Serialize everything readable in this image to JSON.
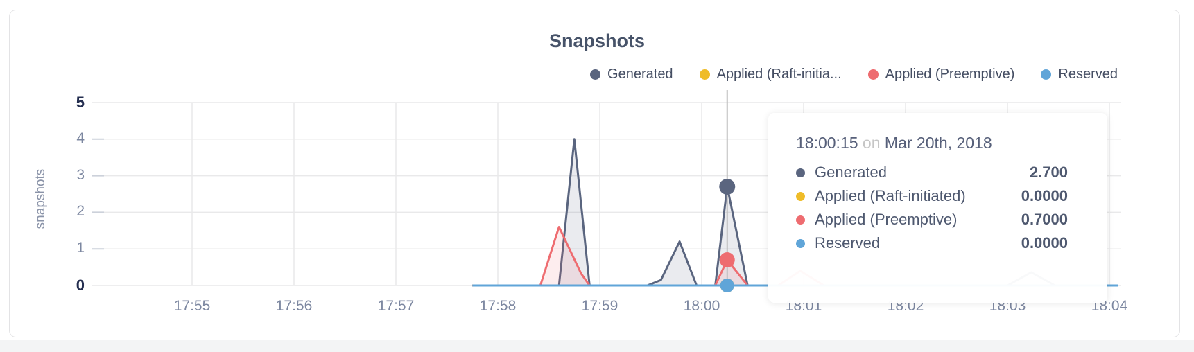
{
  "chart_data": {
    "type": "area",
    "title": "Snapshots",
    "ylabel": "snapshots",
    "xlabel": "",
    "grid": true,
    "legend_position": "top-right",
    "ylim": [
      0,
      5
    ],
    "y_ticks": [
      "0",
      "1",
      "2",
      "3",
      "4",
      "5"
    ],
    "x_ticks": [
      "17:55",
      "17:56",
      "17:57",
      "17:58",
      "17:59",
      "18:00",
      "18:01",
      "18:02",
      "18:03",
      "18:04"
    ],
    "legend": [
      {
        "label": "Generated",
        "color": "#5A657F"
      },
      {
        "label": "Applied (Raft-initia...",
        "color": "#EFBC28"
      },
      {
        "label": "Applied (Preemptive)",
        "color": "#EE6C70"
      },
      {
        "label": "Reserved",
        "color": "#60A5D8"
      }
    ],
    "series": [
      {
        "name": "Generated",
        "color": "#5A657F",
        "fill": "rgba(92,103,128,0.13)",
        "points": [
          [
            "17:57:45",
            0
          ],
          [
            "17:58:36",
            0
          ],
          [
            "17:58:45",
            4.0
          ],
          [
            "17:58:54",
            0
          ],
          [
            "17:59:28",
            0
          ],
          [
            "17:59:36",
            0.15
          ],
          [
            "17:59:47",
            1.2
          ],
          [
            "17:59:57",
            0
          ],
          [
            "18:00:08",
            0
          ],
          [
            "18:00:15",
            2.7
          ],
          [
            "18:00:27",
            0
          ],
          [
            "18:03:00",
            0
          ],
          [
            "18:03:14",
            0.36
          ],
          [
            "18:03:28",
            0
          ],
          [
            "18:04:05",
            0
          ]
        ]
      },
      {
        "name": "Applied (Raft-initiated)",
        "color": "#EFBC28",
        "fill": "none",
        "points": [
          [
            "17:57:45",
            0
          ],
          [
            "18:04:05",
            0
          ]
        ]
      },
      {
        "name": "Applied (Preemptive)",
        "color": "#EE6C70",
        "fill": "rgba(238,108,112,0.12)",
        "points": [
          [
            "17:57:45",
            0
          ],
          [
            "17:58:25",
            0
          ],
          [
            "17:58:36",
            1.6
          ],
          [
            "17:58:49",
            0.33
          ],
          [
            "17:58:54",
            0
          ],
          [
            "18:00:08",
            0
          ],
          [
            "18:00:15",
            0.7
          ],
          [
            "18:00:27",
            0
          ],
          [
            "18:00:45",
            0
          ],
          [
            "18:00:58",
            0.4
          ],
          [
            "18:01:12",
            0
          ],
          [
            "18:04:05",
            0
          ]
        ]
      },
      {
        "name": "Reserved",
        "color": "#60A5D8",
        "fill": "none",
        "points": [
          [
            "17:57:45",
            0
          ],
          [
            "18:04:05",
            0
          ]
        ]
      }
    ],
    "hover": {
      "time": "18:00:15",
      "values": [
        2.7,
        0.0,
        0.7,
        0.0
      ],
      "dot_radii": [
        11.5,
        10,
        11,
        10
      ],
      "line_color": "#bdbdbd"
    }
  },
  "tooltip": {
    "time": "18:00:15",
    "conjunction": "on",
    "date": "Mar 20th, 2018",
    "rows": [
      {
        "label": "Generated",
        "value": "2.700",
        "color": "#5A657F"
      },
      {
        "label": "Applied (Raft-initiated)",
        "value": "0.0000",
        "color": "#EFBC28"
      },
      {
        "label": "Applied (Preemptive)",
        "value": "0.7000",
        "color": "#EE6C70"
      },
      {
        "label": "Reserved",
        "value": "0.0000",
        "color": "#60A5D8"
      }
    ]
  }
}
